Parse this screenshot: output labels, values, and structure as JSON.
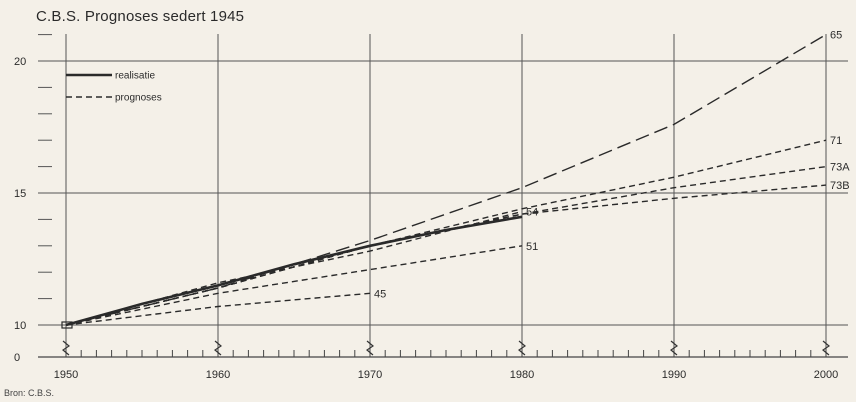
{
  "chart_data": {
    "type": "line",
    "title": "C.B.S. Prognoses sedert 1945",
    "source": "Bron: C.B.S.",
    "xlabel": "",
    "ylabel": "",
    "xlim": [
      1950,
      2000
    ],
    "ylim_visible": [
      10,
      21
    ],
    "y_ticks": [
      {
        "value": 0,
        "label": "0"
      },
      {
        "value": 10,
        "label": "10"
      },
      {
        "value": 15,
        "label": "15"
      },
      {
        "value": 20,
        "label": "20"
      }
    ],
    "x_ticks": [
      "1950",
      "1960",
      "1970",
      "1980",
      "1990",
      "2000"
    ],
    "axis_break": true,
    "grid": true,
    "legend": [
      {
        "key": "realisatie",
        "label": "realisatie",
        "style": "solid"
      },
      {
        "key": "prognoses",
        "label": "prognoses",
        "style": "dashed"
      }
    ],
    "series": [
      {
        "name": "realisatie",
        "style": "solid",
        "x": [
          1950,
          1955,
          1960,
          1965,
          1970,
          1975,
          1980
        ],
        "y": [
          10.0,
          10.8,
          11.5,
          12.3,
          13.0,
          13.6,
          14.1
        ]
      },
      {
        "name": "45",
        "style": "dashed",
        "x": [
          1950,
          1960,
          1970
        ],
        "y": [
          10.0,
          10.7,
          11.2
        ]
      },
      {
        "name": "51",
        "style": "dashed",
        "x": [
          1950,
          1960,
          1970,
          1980
        ],
        "y": [
          10.0,
          11.2,
          12.1,
          13.0
        ]
      },
      {
        "name": "54",
        "style": "dashed",
        "x": [
          1950,
          1960,
          1970,
          1980
        ],
        "y": [
          10.0,
          11.6,
          12.8,
          14.3
        ]
      },
      {
        "name": "65",
        "style": "dashed",
        "x": [
          1950,
          1960,
          1970,
          1980,
          1990,
          2000
        ],
        "y": [
          10.0,
          11.4,
          13.2,
          15.2,
          17.6,
          21.0
        ]
      },
      {
        "name": "71",
        "style": "dashed",
        "x": [
          1950,
          1960,
          1970,
          1980,
          1990,
          2000
        ],
        "y": [
          10.0,
          11.4,
          13.0,
          14.4,
          15.6,
          17.0
        ]
      },
      {
        "name": "73A",
        "style": "dashed",
        "x": [
          1950,
          1960,
          1970,
          1980,
          1990,
          2000
        ],
        "y": [
          10.0,
          11.4,
          13.0,
          14.2,
          15.2,
          16.0
        ]
      },
      {
        "name": "73B",
        "style": "dashed",
        "x": [
          1950,
          1960,
          1970,
          1980,
          1990,
          2000
        ],
        "y": [
          10.0,
          11.4,
          13.0,
          14.2,
          14.8,
          15.3
        ]
      }
    ]
  }
}
